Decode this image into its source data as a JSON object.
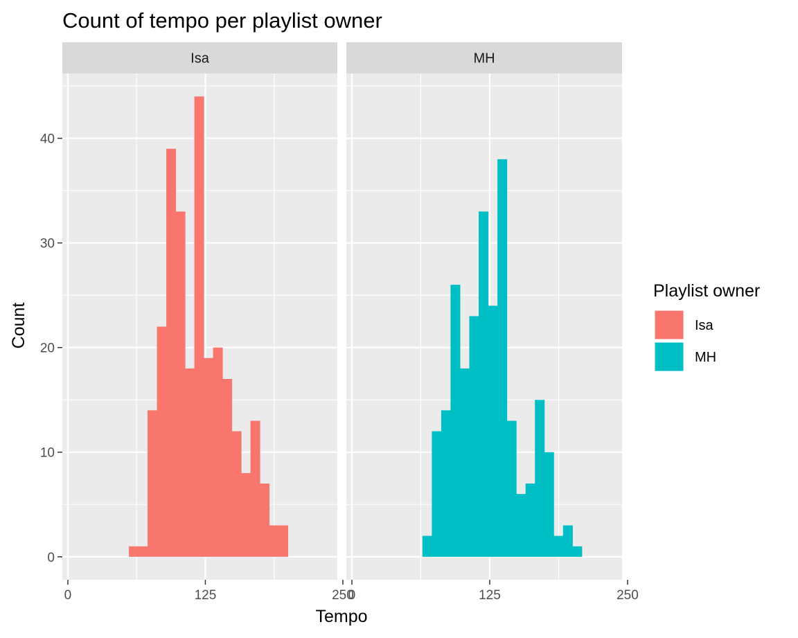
{
  "chart_data": {
    "type": "bar",
    "subtype": "faceted-histogram",
    "title": "Count of tempo per playlist owner",
    "xlabel": "Tempo",
    "ylabel": "Count",
    "xlim": [
      -5,
      245
    ],
    "ylim": [
      -2.2,
      46.2
    ],
    "x_ticks": [
      0,
      125,
      250
    ],
    "x_minor_ticks": [
      62.5,
      187.5
    ],
    "y_ticks": [
      0,
      10,
      20,
      30,
      40
    ],
    "y_minor_ticks": [
      5,
      15,
      25,
      35,
      45
    ],
    "grid": true,
    "legend_position": "right",
    "legend_title": "Playlist owner",
    "bin_width": 8.5,
    "series": [
      {
        "name": "Isa",
        "color": "#F8766D",
        "bins": [
          {
            "x0": 55.5,
            "x1": 64.0,
            "count": 1
          },
          {
            "x0": 64.0,
            "x1": 72.5,
            "count": 1
          },
          {
            "x0": 72.5,
            "x1": 81.0,
            "count": 14
          },
          {
            "x0": 81.0,
            "x1": 89.5,
            "count": 22
          },
          {
            "x0": 89.5,
            "x1": 98.0,
            "count": 39
          },
          {
            "x0": 98.0,
            "x1": 106.5,
            "count": 33
          },
          {
            "x0": 106.5,
            "x1": 115.0,
            "count": 18
          },
          {
            "x0": 115.0,
            "x1": 123.5,
            "count": 44
          },
          {
            "x0": 123.5,
            "x1": 132.0,
            "count": 19
          },
          {
            "x0": 132.0,
            "x1": 140.5,
            "count": 20
          },
          {
            "x0": 140.5,
            "x1": 149.0,
            "count": 17
          },
          {
            "x0": 149.0,
            "x1": 157.5,
            "count": 12
          },
          {
            "x0": 157.5,
            "x1": 166.0,
            "count": 8
          },
          {
            "x0": 166.0,
            "x1": 174.5,
            "count": 13
          },
          {
            "x0": 174.5,
            "x1": 183.0,
            "count": 7
          },
          {
            "x0": 183.0,
            "x1": 191.5,
            "count": 3
          },
          {
            "x0": 191.5,
            "x1": 200.0,
            "count": 3
          }
        ]
      },
      {
        "name": "MH",
        "color": "#00BFC4",
        "bins": [
          {
            "x0": 64.0,
            "x1": 72.5,
            "count": 2
          },
          {
            "x0": 72.5,
            "x1": 81.0,
            "count": 12
          },
          {
            "x0": 81.0,
            "x1": 89.5,
            "count": 14
          },
          {
            "x0": 89.5,
            "x1": 98.0,
            "count": 26
          },
          {
            "x0": 98.0,
            "x1": 106.5,
            "count": 18
          },
          {
            "x0": 106.5,
            "x1": 115.0,
            "count": 23
          },
          {
            "x0": 115.0,
            "x1": 123.5,
            "count": 33
          },
          {
            "x0": 123.5,
            "x1": 132.0,
            "count": 24
          },
          {
            "x0": 132.0,
            "x1": 140.5,
            "count": 38
          },
          {
            "x0": 140.5,
            "x1": 149.0,
            "count": 13
          },
          {
            "x0": 149.0,
            "x1": 157.5,
            "count": 6
          },
          {
            "x0": 157.5,
            "x1": 166.0,
            "count": 7
          },
          {
            "x0": 166.0,
            "x1": 174.5,
            "count": 15
          },
          {
            "x0": 174.5,
            "x1": 183.0,
            "count": 10
          },
          {
            "x0": 183.0,
            "x1": 191.5,
            "count": 2
          },
          {
            "x0": 191.5,
            "x1": 200.0,
            "count": 3
          },
          {
            "x0": 200.0,
            "x1": 208.5,
            "count": 1
          }
        ]
      }
    ]
  },
  "colors": {
    "panel_background": "#EBEBEB",
    "strip_background": "#D9D9D9",
    "grid_line": "#FFFFFF",
    "tick_mark": "#333333"
  }
}
